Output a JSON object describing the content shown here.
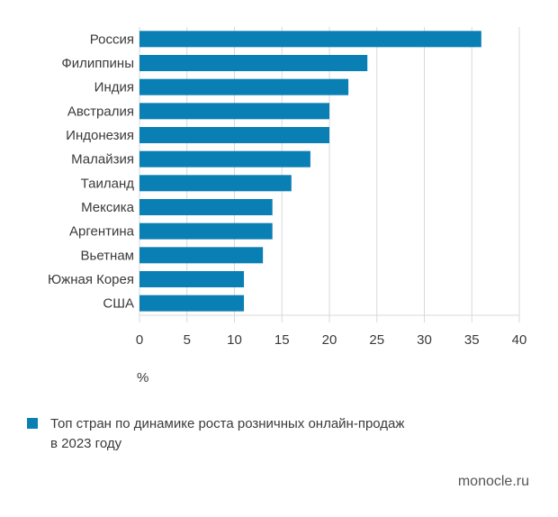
{
  "chart_data": {
    "type": "bar",
    "orientation": "horizontal",
    "categories": [
      "Россия",
      "Филиппины",
      "Индия",
      "Австралия",
      "Индонезия",
      "Малайзия",
      "Таиланд",
      "Мексика",
      "Аргентина",
      "Вьетнам",
      "Южная Корея",
      "США"
    ],
    "values": [
      36,
      24,
      22,
      20,
      20,
      18,
      16,
      14,
      14,
      13,
      11,
      11
    ],
    "xlim": [
      0,
      40
    ],
    "xticks": [
      "0",
      "5",
      "10",
      "15",
      "20",
      "25",
      "30",
      "35",
      "40"
    ],
    "xlabel": "%",
    "grid": true,
    "legend": "Топ стран по динамике роста розничных онлайн-продаж в 2023 году",
    "legend_placement": "bottom-left",
    "color": "#0a7fb3"
  },
  "source": "monocle.ru"
}
